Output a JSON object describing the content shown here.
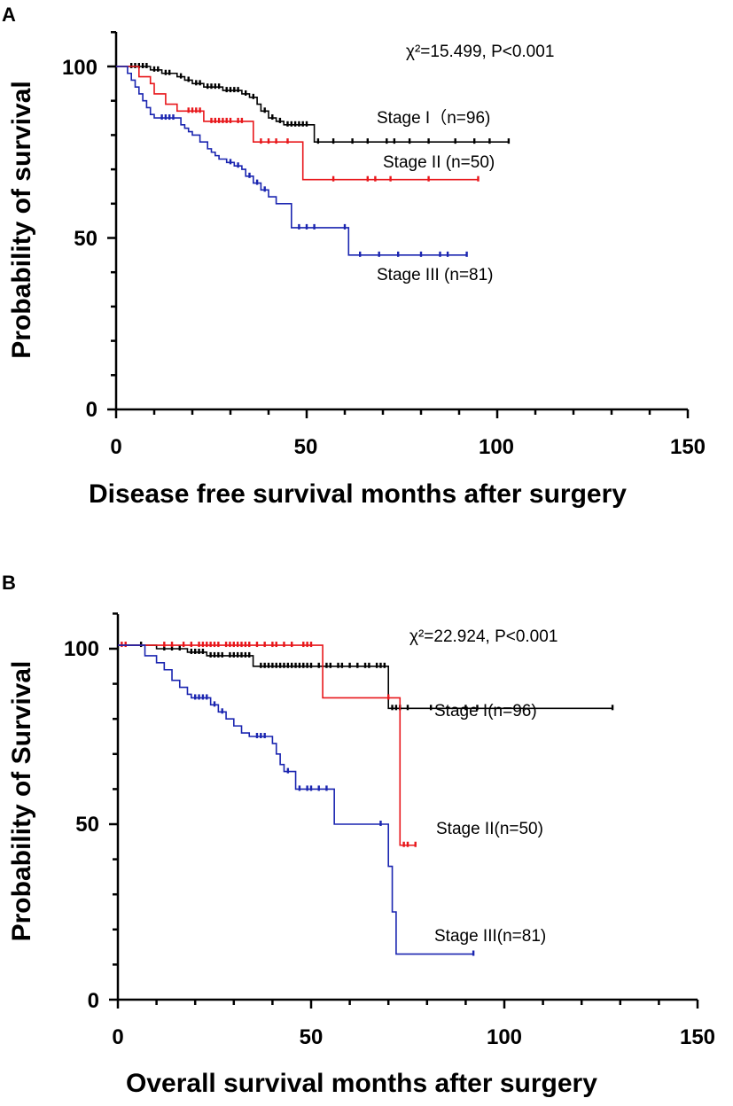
{
  "chart_data": [
    {
      "type": "line",
      "panel_label": "A",
      "title": "",
      "xlabel": "Disease free survival months after surgery",
      "ylabel": "Probability of survival",
      "xlim": [
        0,
        150
      ],
      "ylim": [
        0,
        110
      ],
      "xticks": [
        0,
        50,
        100,
        150
      ],
      "xtick_labels": [
        "0",
        "50",
        "100",
        "150"
      ],
      "yticks": [
        0,
        50,
        100
      ],
      "ytick_labels": [
        "0",
        "50",
        "100"
      ],
      "statistic": "χ²=15.499,  P<0.001",
      "series": [
        {
          "name": "Stage I（n=96)",
          "color": "#000000",
          "steps": [
            [
              0,
              100
            ],
            [
              9,
              99
            ],
            [
              12,
              98
            ],
            [
              16,
              97
            ],
            [
              18,
              96
            ],
            [
              20,
              95
            ],
            [
              23,
              94
            ],
            [
              28,
              93
            ],
            [
              33,
              92
            ],
            [
              35,
              91
            ],
            [
              37,
              89
            ],
            [
              38,
              87
            ],
            [
              40,
              85
            ],
            [
              42,
              84
            ],
            [
              44,
              83
            ],
            [
              52,
              78
            ],
            [
              103,
              78
            ]
          ],
          "censored": [
            4,
            5,
            6,
            7,
            8,
            10,
            11,
            13,
            14,
            17,
            19,
            21,
            22,
            24,
            25,
            26,
            27,
            29,
            30,
            31,
            32,
            34,
            36,
            39,
            41,
            43,
            45,
            46,
            47,
            48,
            49,
            50,
            53,
            57,
            62,
            66,
            71,
            73,
            77,
            82,
            89,
            94,
            98,
            103
          ]
        },
        {
          "name": "Stage II (n=50)",
          "color": "#e8171b",
          "steps": [
            [
              0,
              100
            ],
            [
              6,
              97
            ],
            [
              9,
              95
            ],
            [
              10,
              92
            ],
            [
              13,
              89
            ],
            [
              16,
              87
            ],
            [
              23,
              84
            ],
            [
              36,
              78
            ],
            [
              49,
              67
            ],
            [
              95,
              67
            ]
          ],
          "censored": [
            19,
            20,
            21,
            22,
            25,
            26,
            27,
            28,
            29,
            30,
            32,
            33,
            38,
            40,
            42,
            45,
            57,
            66,
            68,
            72,
            82,
            95
          ]
        },
        {
          "name": "Stage III (n=81)",
          "color": "#1a25b0",
          "steps": [
            [
              0,
              100
            ],
            [
              3,
              98
            ],
            [
              4,
              96
            ],
            [
              5,
              94
            ],
            [
              6,
              92
            ],
            [
              7,
              90
            ],
            [
              8,
              88
            ],
            [
              9,
              86
            ],
            [
              10,
              85
            ],
            [
              17,
              83
            ],
            [
              18,
              82
            ],
            [
              19,
              81
            ],
            [
              20,
              80
            ],
            [
              22,
              78
            ],
            [
              24,
              76
            ],
            [
              25,
              75
            ],
            [
              26,
              74
            ],
            [
              27,
              73
            ],
            [
              29,
              72
            ],
            [
              31,
              71
            ],
            [
              33,
              70
            ],
            [
              34,
              68
            ],
            [
              36,
              66
            ],
            [
              38,
              64
            ],
            [
              40,
              62
            ],
            [
              42,
              60
            ],
            [
              46,
              53
            ],
            [
              61,
              45
            ],
            [
              92,
              45
            ]
          ],
          "censored": [
            12,
            13,
            14,
            15,
            30,
            32,
            35,
            37,
            39,
            48,
            50,
            52,
            60,
            64,
            69,
            74,
            80,
            85,
            87,
            92
          ]
        }
      ],
      "series_annotations": [
        "Stage I（n=96)",
        "Stage II (n=50)",
        "Stage III (n=81)"
      ]
    },
    {
      "type": "line",
      "panel_label": "B",
      "title": "",
      "xlabel": "Overall survival months after surgery",
      "ylabel": "Probability of Survival",
      "xlim": [
        0,
        150
      ],
      "ylim": [
        0,
        110
      ],
      "xticks": [
        0,
        50,
        100,
        150
      ],
      "xtick_labels": [
        "0",
        "50",
        "100",
        "150"
      ],
      "yticks": [
        0,
        50,
        100
      ],
      "ytick_labels": [
        "0",
        "50",
        "100"
      ],
      "statistic": "χ²=22.924,  P<0.001",
      "series": [
        {
          "name": "Stage I(n=96)",
          "color": "#000000",
          "steps": [
            [
              0,
              101
            ],
            [
              10,
              100
            ],
            [
              18,
              99
            ],
            [
              23,
              98
            ],
            [
              35,
              95
            ],
            [
              70,
              83
            ],
            [
              128,
              83
            ]
          ],
          "censored": [
            6,
            12,
            14,
            16,
            19,
            20,
            21,
            22,
            24,
            25,
            26,
            27,
            29,
            30,
            31,
            32,
            33,
            34,
            37,
            38,
            39,
            40,
            41,
            42,
            43,
            44,
            45,
            46,
            47,
            48,
            49,
            50,
            52,
            54,
            55,
            57,
            58,
            60,
            62,
            64,
            65,
            67,
            68,
            69,
            71,
            72,
            73,
            75,
            81,
            90,
            93,
            128
          ]
        },
        {
          "name": "Stage II(n=50)",
          "color": "#e8171b",
          "steps": [
            [
              0,
              101
            ],
            [
              53,
              86
            ],
            [
              72,
              86
            ],
            [
              73,
              44
            ],
            [
              77,
              44
            ]
          ],
          "censored": [
            1,
            2,
            12,
            14,
            17,
            19,
            21,
            22,
            23,
            24,
            25,
            26,
            28,
            29,
            30,
            31,
            32,
            33,
            34,
            36,
            38,
            40,
            41,
            43,
            45,
            48,
            49,
            50,
            70,
            74,
            75,
            77
          ]
        },
        {
          "name": "Stage III(n=81)",
          "color": "#1a25b0",
          "steps": [
            [
              0,
              101
            ],
            [
              7,
              98
            ],
            [
              10,
              96
            ],
            [
              12,
              94
            ],
            [
              14,
              91
            ],
            [
              16,
              89
            ],
            [
              18,
              87
            ],
            [
              19,
              86
            ],
            [
              24,
              84
            ],
            [
              26,
              82
            ],
            [
              28,
              80
            ],
            [
              30,
              78
            ],
            [
              32,
              76
            ],
            [
              34,
              75
            ],
            [
              40,
              73
            ],
            [
              41,
              70
            ],
            [
              42,
              67
            ],
            [
              43,
              65
            ],
            [
              46,
              60
            ],
            [
              56,
              50
            ],
            [
              69,
              50
            ],
            [
              70,
              38
            ],
            [
              71,
              25
            ],
            [
              72,
              13
            ],
            [
              92,
              13
            ]
          ],
          "censored": [
            20,
            21,
            22,
            23,
            25,
            27,
            36,
            37,
            38,
            44,
            47,
            49,
            50,
            52,
            54,
            68,
            92
          ]
        }
      ],
      "series_annotations": [
        "Stage I(n=96)",
        "Stage II(n=50)",
        "Stage III(n=81)"
      ]
    }
  ]
}
